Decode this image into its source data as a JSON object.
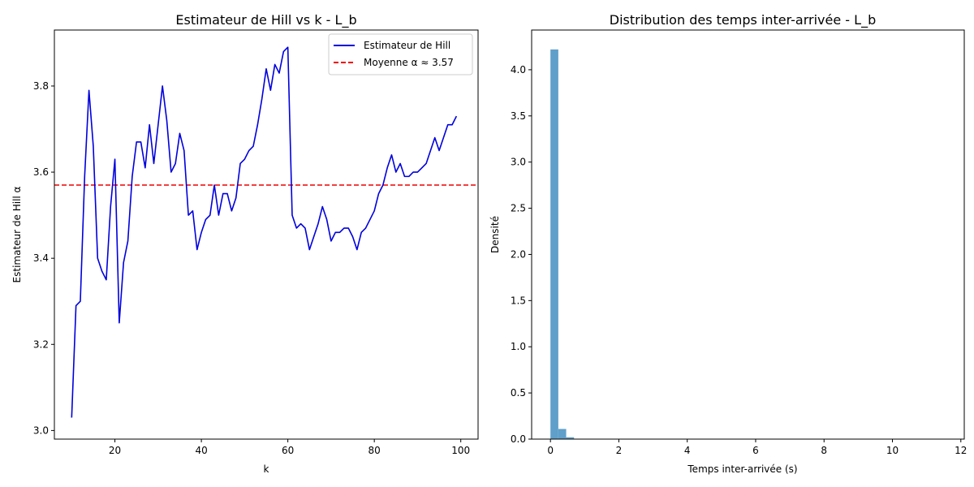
{
  "figure": {
    "colors": {
      "hill_line": "#0000dd",
      "mean_line": "#ee0000",
      "hist_bar": "#5f9fca"
    }
  },
  "chart_data": [
    {
      "type": "line",
      "title": "Estimateur de Hill vs k - L_b",
      "xlabel": "k",
      "ylabel": "Estimateur de Hill α",
      "xlim": [
        6,
        104
      ],
      "ylim": [
        2.98,
        3.93
      ],
      "xticks": [
        20,
        40,
        60,
        80,
        100
      ],
      "xtick_labels": [
        "20",
        "40",
        "60",
        "80",
        "100"
      ],
      "yticks": [
        3.0,
        3.2,
        3.4,
        3.6,
        3.8
      ],
      "ytick_labels": [
        "3.0",
        "3.2",
        "3.4",
        "3.6",
        "3.8"
      ],
      "grid": false,
      "legend": {
        "placement": "top-right",
        "entries": [
          {
            "label": "Estimateur de Hill",
            "style": "solid",
            "color": "#0000dd"
          },
          {
            "label": "Moyenne α ≈ 3.57",
            "style": "dashed",
            "color": "#ee0000"
          }
        ]
      },
      "x": [
        10,
        11,
        12,
        13,
        14,
        15,
        16,
        17,
        18,
        19,
        20,
        21,
        22,
        23,
        24,
        25,
        26,
        27,
        28,
        29,
        30,
        31,
        32,
        33,
        34,
        35,
        36,
        37,
        38,
        39,
        40,
        41,
        42,
        43,
        44,
        45,
        46,
        47,
        48,
        49,
        50,
        51,
        52,
        53,
        54,
        55,
        56,
        57,
        58,
        59,
        60,
        61,
        62,
        63,
        64,
        65,
        66,
        67,
        68,
        69,
        70,
        71,
        72,
        73,
        74,
        75,
        76,
        77,
        78,
        79,
        80,
        81,
        82,
        83,
        84,
        85,
        86,
        87,
        88,
        89,
        90,
        91,
        92,
        93,
        94,
        95,
        96,
        97,
        98,
        99
      ],
      "series": [
        {
          "name": "Estimateur de Hill",
          "values": [
            3.03,
            3.29,
            3.3,
            3.59,
            3.79,
            3.66,
            3.4,
            3.37,
            3.35,
            3.52,
            3.63,
            3.25,
            3.39,
            3.44,
            3.59,
            3.67,
            3.67,
            3.61,
            3.71,
            3.62,
            3.71,
            3.8,
            3.72,
            3.6,
            3.62,
            3.69,
            3.65,
            3.5,
            3.51,
            3.42,
            3.46,
            3.49,
            3.5,
            3.57,
            3.5,
            3.55,
            3.55,
            3.51,
            3.54,
            3.62,
            3.63,
            3.65,
            3.66,
            3.71,
            3.77,
            3.84,
            3.79,
            3.85,
            3.83,
            3.88,
            3.89,
            3.5,
            3.47,
            3.48,
            3.47,
            3.42,
            3.45,
            3.48,
            3.52,
            3.49,
            3.44,
            3.46,
            3.46,
            3.47,
            3.47,
            3.45,
            3.42,
            3.46,
            3.47,
            3.49,
            3.51,
            3.55,
            3.57,
            3.61,
            3.64,
            3.6,
            3.62,
            3.59,
            3.59,
            3.6,
            3.6,
            3.61,
            3.62,
            3.65,
            3.68,
            3.65,
            3.68,
            3.71,
            3.71,
            3.73
          ]
        }
      ],
      "reference_line": {
        "name": "Moyenne α ≈ 3.57",
        "y": 3.57
      }
    },
    {
      "type": "bar",
      "title": "Distribution des temps inter-arrivée - L_b",
      "xlabel": "Temps inter-arrivée (s)",
      "ylabel": "Densité",
      "xlim": [
        -0.55,
        12.1
      ],
      "ylim": [
        0,
        4.43
      ],
      "xticks": [
        0,
        2,
        4,
        6,
        8,
        10,
        12
      ],
      "xtick_labels": [
        "0",
        "2",
        "4",
        "6",
        "8",
        "10",
        "12"
      ],
      "yticks": [
        0.0,
        0.5,
        1.0,
        1.5,
        2.0,
        2.5,
        3.0,
        3.5,
        4.0
      ],
      "ytick_labels": [
        "0.0",
        "0.5",
        "1.0",
        "1.5",
        "2.0",
        "2.5",
        "3.0",
        "3.5",
        "4.0"
      ],
      "grid": false,
      "bin_edges": [
        0.0,
        0.23,
        0.46,
        0.69
      ],
      "values": [
        4.22,
        0.11,
        0.02
      ]
    }
  ]
}
